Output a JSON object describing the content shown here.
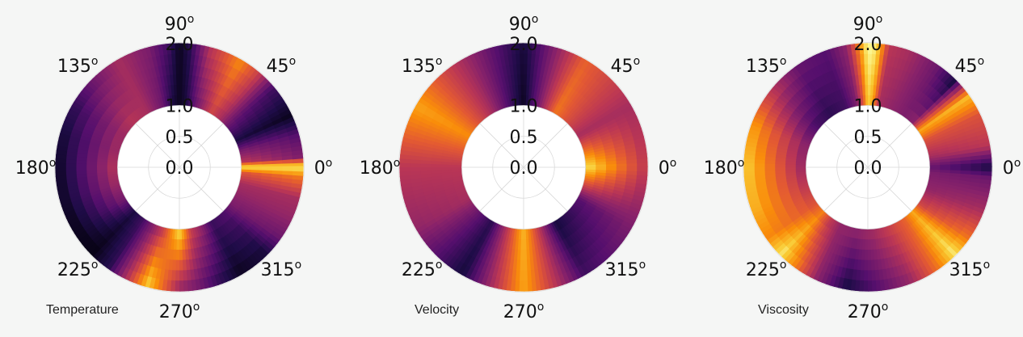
{
  "chart_data": [
    {
      "type": "heatmap",
      "projection": "polar",
      "title": "Temperature",
      "colormap": "inferno",
      "theta_ticks": [
        "0",
        "45",
        "90",
        "135",
        "180",
        "225",
        "270",
        "315"
      ],
      "theta_tick_suffix": "o",
      "r_ticks": [
        "0.0",
        "0.5",
        "1.0",
        "2.0"
      ],
      "r_range": [
        1.0,
        2.0
      ],
      "grid": true,
      "value_profile": {
        "theta_deg": [
          0,
          5,
          15,
          25,
          40,
          50,
          60,
          75,
          85,
          90,
          95,
          105,
          120,
          135,
          150,
          165,
          180,
          195,
          210,
          225,
          235,
          245,
          255,
          270,
          280,
          290,
          300,
          315,
          325,
          335,
          345,
          355
        ],
        "inner": [
          0.95,
          0.5,
          0.35,
          0.12,
          0.3,
          0.45,
          0.55,
          0.3,
          0.1,
          0.05,
          0.1,
          0.3,
          0.45,
          0.5,
          0.45,
          0.45,
          0.5,
          0.45,
          0.35,
          0.12,
          0.2,
          0.35,
          0.5,
          0.95,
          0.55,
          0.4,
          0.2,
          0.25,
          0.35,
          0.4,
          0.45,
          0.6
        ],
        "outer": [
          0.95,
          0.35,
          0.25,
          0.05,
          0.2,
          0.55,
          0.75,
          0.5,
          0.15,
          0.05,
          0.2,
          0.35,
          0.45,
          0.3,
          0.15,
          0.08,
          0.05,
          0.05,
          0.03,
          0.03,
          0.15,
          0.5,
          0.9,
          0.4,
          0.3,
          0.15,
          0.05,
          0.1,
          0.3,
          0.4,
          0.45,
          0.7
        ]
      }
    },
    {
      "type": "heatmap",
      "projection": "polar",
      "title": "Velocity",
      "colormap": "inferno",
      "theta_ticks": [
        "0",
        "45",
        "90",
        "135",
        "180",
        "225",
        "270",
        "315"
      ],
      "theta_tick_suffix": "o",
      "r_ticks": [
        "0.0",
        "0.5",
        "1.0",
        "2.0"
      ],
      "r_range": [
        1.0,
        2.0
      ],
      "grid": true,
      "value_profile": {
        "theta_deg": [
          0,
          30,
          60,
          90,
          120,
          150,
          180,
          210,
          240,
          270,
          300,
          330
        ],
        "inner": [
          0.95,
          0.45,
          0.7,
          0.05,
          0.45,
          0.75,
          0.5,
          0.45,
          0.15,
          0.85,
          0.1,
          0.25
        ],
        "outer": [
          0.5,
          0.45,
          0.65,
          0.1,
          0.45,
          0.8,
          0.5,
          0.4,
          0.1,
          0.8,
          0.2,
          0.35
        ]
      }
    },
    {
      "type": "heatmap",
      "projection": "polar",
      "title": "Viscosity",
      "colormap": "inferno",
      "theta_ticks": [
        "0",
        "45",
        "90",
        "135",
        "180",
        "225",
        "270",
        "315"
      ],
      "theta_tick_suffix": "o",
      "r_ticks": [
        "0.0",
        "0.5",
        "1.0",
        "2.0"
      ],
      "r_range": [
        1.0,
        2.0
      ],
      "grid": true,
      "value_profile": {
        "theta_deg": [
          0,
          10,
          25,
          35,
          45,
          55,
          70,
          80,
          86,
          90,
          94,
          100,
          110,
          125,
          140,
          160,
          180,
          200,
          215,
          225,
          235,
          245,
          260,
          275,
          290,
          305,
          315,
          325,
          340,
          355
        ],
        "inner": [
          0.3,
          0.45,
          0.6,
          0.8,
          0.4,
          0.35,
          0.4,
          0.45,
          0.8,
          0.9,
          0.6,
          0.35,
          0.2,
          0.15,
          0.2,
          0.35,
          0.4,
          0.5,
          0.6,
          0.7,
          0.5,
          0.4,
          0.4,
          0.45,
          0.55,
          0.65,
          0.8,
          0.55,
          0.4,
          0.35
        ],
        "outer": [
          0.1,
          0.5,
          0.6,
          0.85,
          0.1,
          0.3,
          0.45,
          0.5,
          0.95,
          1.0,
          0.75,
          0.4,
          0.25,
          0.3,
          0.5,
          0.8,
          0.9,
          0.85,
          0.75,
          0.95,
          0.7,
          0.4,
          0.1,
          0.25,
          0.4,
          0.7,
          0.95,
          0.7,
          0.45,
          0.3
        ]
      }
    }
  ]
}
